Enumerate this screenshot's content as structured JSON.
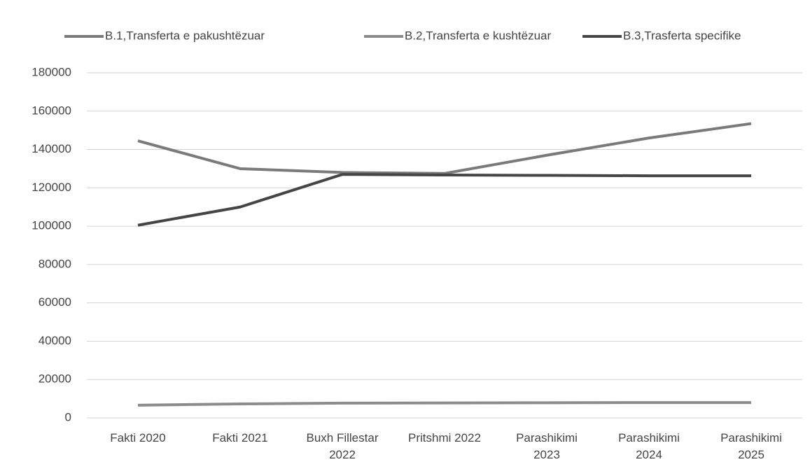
{
  "chart_data": {
    "type": "line",
    "categories": [
      "Fakti 2020",
      "Fakti 2021",
      "Buxh Fillestar 2022",
      "Pritshmi 2022",
      "Parashikimi 2023",
      "Parashikimi 2024",
      "Parashikimi 2025"
    ],
    "series": [
      {
        "name": "B.1,Transferta e pakushtëzuar",
        "color": "#7a7a7a",
        "values": [
          144500,
          130000,
          128000,
          127500,
          137000,
          146000,
          153500
        ]
      },
      {
        "name": "B.2,Transferta e kushtëzuar",
        "color": "#8c8c8c",
        "values": [
          6600,
          7300,
          7700,
          7800,
          7900,
          8000,
          8000
        ]
      },
      {
        "name": "B.3,Trasferta specifike",
        "color": "#454545",
        "values": [
          100500,
          110000,
          127000,
          126700,
          126500,
          126300,
          126300
        ]
      }
    ],
    "ylim": [
      0,
      180000
    ],
    "yticks": [
      0,
      20000,
      40000,
      60000,
      80000,
      100000,
      120000,
      140000,
      160000,
      180000
    ],
    "grid": true,
    "legend": "top"
  }
}
